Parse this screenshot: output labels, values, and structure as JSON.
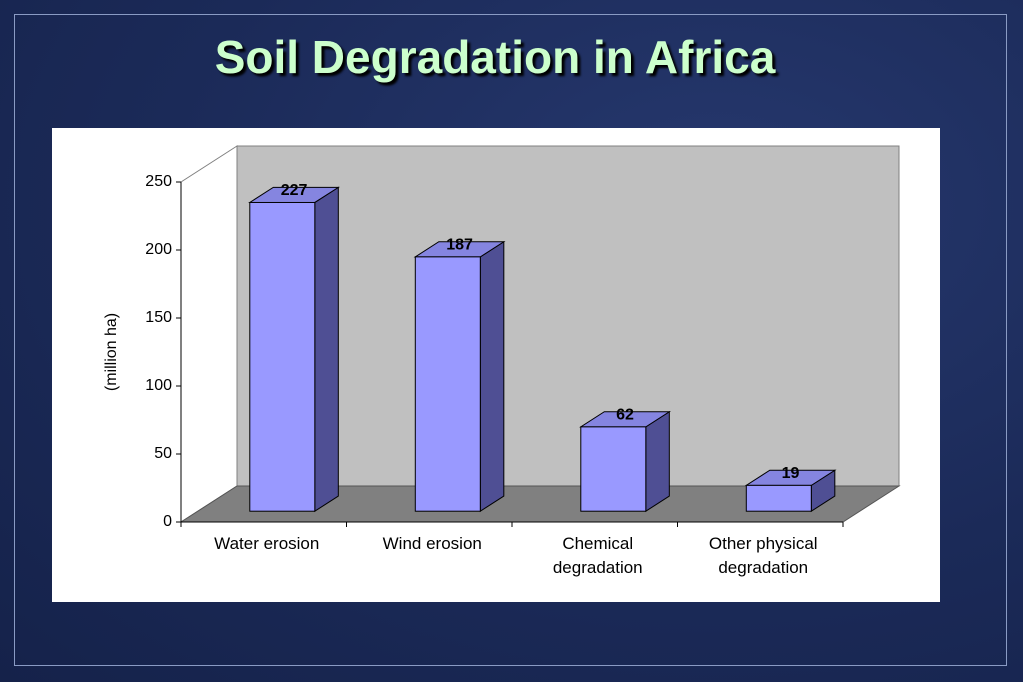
{
  "title": "Soil Degradation in Africa",
  "chart_data": {
    "type": "bar3d",
    "y_label": "(million ha)",
    "categories": [
      "Water erosion",
      "Wind erosion",
      "Chemical degradation",
      "Other physical degradation"
    ],
    "values": [
      227,
      187,
      62,
      19
    ],
    "color": "#9999ff",
    "ylim": [
      0,
      250
    ],
    "yticks": [
      0,
      50,
      100,
      150,
      200,
      250
    ]
  }
}
